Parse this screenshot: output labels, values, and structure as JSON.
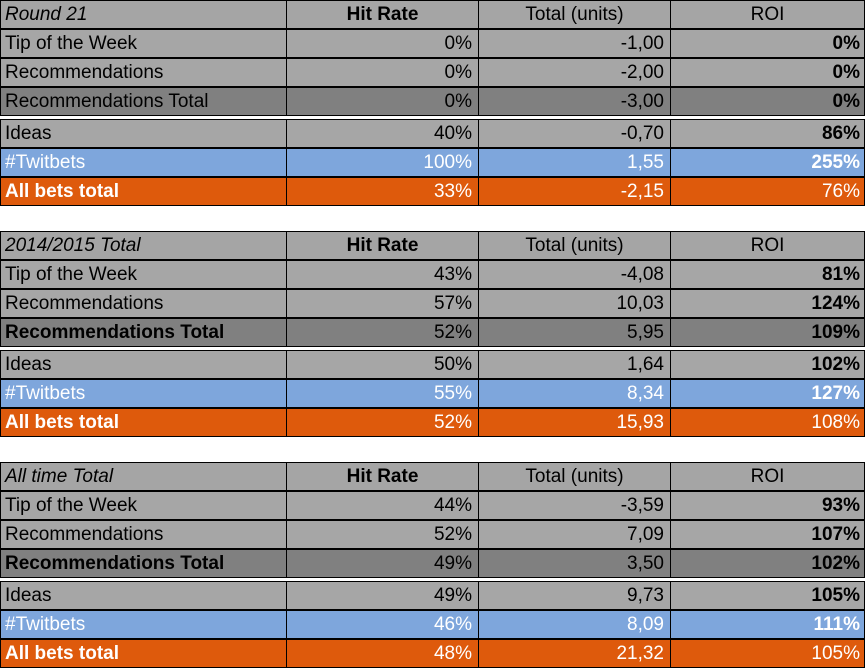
{
  "columns": [
    "Hit Rate",
    "Total (units)",
    "ROI"
  ],
  "colors": {
    "header": "#a5a5a5",
    "grey": "#a6a6a6",
    "dark": "#808080",
    "twitbets": "#7ea6dc",
    "all_bets": "#de5a0c"
  },
  "tables": [
    {
      "title": "Round 21",
      "rows": [
        {
          "label": "Tip of the Week",
          "hit_rate": "0%",
          "total": "-1,00",
          "roi": "0%"
        },
        {
          "label": "Recommendations",
          "hit_rate": "0%",
          "total": "-2,00",
          "roi": "0%"
        },
        {
          "label": "Recommendations Total",
          "hit_rate": "0%",
          "total": "-3,00",
          "roi": "0%"
        },
        {
          "label": "Ideas",
          "hit_rate": "40%",
          "total": "-0,70",
          "roi": "86%"
        },
        {
          "label": "#Twitbets",
          "hit_rate": "100%",
          "total": "1,55",
          "roi": "255%"
        },
        {
          "label": "All bets total",
          "hit_rate": "33%",
          "total": "-2,15",
          "roi": "76%"
        }
      ]
    },
    {
      "title": "2014/2015 Total",
      "rows": [
        {
          "label": "Tip of the Week",
          "hit_rate": "43%",
          "total": "-4,08",
          "roi": "81%"
        },
        {
          "label": "Recommendations",
          "hit_rate": "57%",
          "total": "10,03",
          "roi": "124%"
        },
        {
          "label": "Recommendations Total",
          "hit_rate": "52%",
          "total": "5,95",
          "roi": "109%"
        },
        {
          "label": "Ideas",
          "hit_rate": "50%",
          "total": "1,64",
          "roi": "102%"
        },
        {
          "label": "#Twitbets",
          "hit_rate": "55%",
          "total": "8,34",
          "roi": "127%"
        },
        {
          "label": "All bets total",
          "hit_rate": "52%",
          "total": "15,93",
          "roi": "108%"
        }
      ]
    },
    {
      "title": "All time Total",
      "rows": [
        {
          "label": "Tip of the Week",
          "hit_rate": "44%",
          "total": "-3,59",
          "roi": "93%"
        },
        {
          "label": "Recommendations",
          "hit_rate": "52%",
          "total": "7,09",
          "roi": "107%"
        },
        {
          "label": "Recommendations Total",
          "hit_rate": "49%",
          "total": "3,50",
          "roi": "102%"
        },
        {
          "label": "Ideas",
          "hit_rate": "49%",
          "total": "9,73",
          "roi": "105%"
        },
        {
          "label": "#Twitbets",
          "hit_rate": "46%",
          "total": "8,09",
          "roi": "111%"
        },
        {
          "label": "All bets total",
          "hit_rate": "48%",
          "total": "21,32",
          "roi": "105%"
        }
      ]
    }
  ]
}
